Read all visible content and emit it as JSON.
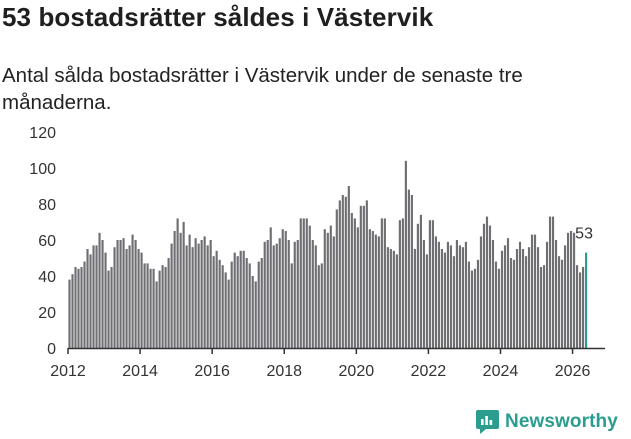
{
  "header": {
    "title": "53 bostadsrätter såldes i Västervik",
    "subtitle": "Antal sålda bostadsrätter i Västervik under de senaste tre månaderna."
  },
  "brand": {
    "name": "Newsworthy",
    "icon": "newsworthy-logo-icon",
    "color": "#2a9d8f"
  },
  "colors": {
    "bar": "#6e6e73",
    "highlight": "#2a9d8f",
    "axis": "#333333",
    "grid": "#d9d9d9"
  },
  "chart_data": {
    "type": "bar",
    "title": "53 bostadsrätter såldes i Västervik",
    "subtitle": "Antal sålda bostadsrätter i Västervik under de senaste tre månaderna.",
    "xlabel": "",
    "ylabel": "",
    "ylim": [
      0,
      120
    ],
    "yticks": [
      0,
      20,
      40,
      60,
      80,
      100,
      120
    ],
    "xlim": [
      2012.0,
      2026.9
    ],
    "xticks": [
      2012,
      2014,
      2016,
      2018,
      2020,
      2022,
      2024,
      2026
    ],
    "grid": false,
    "start": "2012-01",
    "interval": "month",
    "highlight_label": "53",
    "values": [
      38,
      41,
      45,
      44,
      45,
      48,
      55,
      52,
      57,
      57,
      64,
      60,
      53,
      43,
      45,
      56,
      60,
      60,
      61,
      55,
      57,
      63,
      60,
      55,
      53,
      47,
      47,
      44,
      44,
      37,
      43,
      46,
      45,
      50,
      58,
      65,
      72,
      64,
      70,
      57,
      63,
      56,
      61,
      58,
      60,
      62,
      57,
      60,
      51,
      54,
      49,
      46,
      42,
      38,
      48,
      53,
      51,
      54,
      54,
      50,
      47,
      40,
      37,
      48,
      50,
      59,
      60,
      67,
      57,
      58,
      61,
      66,
      65,
      60,
      47,
      59,
      60,
      72,
      72,
      72,
      68,
      60,
      57,
      46,
      47,
      66,
      64,
      68,
      62,
      77,
      82,
      85,
      84,
      90,
      75,
      72,
      67,
      79,
      79,
      82,
      66,
      65,
      63,
      62,
      72,
      72,
      56,
      55,
      54,
      52,
      71,
      72,
      104,
      88,
      85,
      55,
      69,
      74,
      60,
      52,
      71,
      71,
      62,
      59,
      55,
      53,
      59,
      57,
      51,
      60,
      57,
      56,
      59,
      48,
      43,
      44,
      49,
      62,
      69,
      73,
      68,
      60,
      48,
      44,
      54,
      57,
      61,
      50,
      49,
      55,
      59,
      55,
      51,
      56,
      63,
      63,
      56,
      45,
      46,
      59,
      73,
      73,
      60,
      51,
      49,
      57,
      64,
      65,
      64,
      46,
      42,
      45,
      53
    ]
  }
}
